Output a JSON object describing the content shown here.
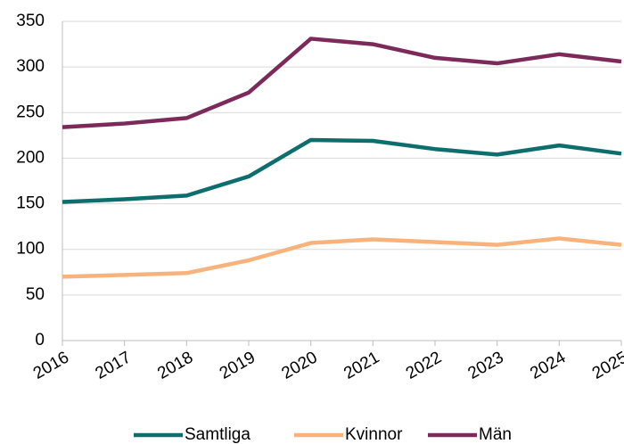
{
  "chart_data": {
    "type": "line",
    "categories": [
      "2016",
      "2017",
      "2018",
      "2019",
      "2020",
      "2021",
      "2022",
      "2023",
      "2024",
      "2025"
    ],
    "series": [
      {
        "name": "Samtliga",
        "color": "#0e6e6e",
        "values": [
          152,
          155,
          159,
          180,
          220,
          219,
          210,
          204,
          214,
          205
        ]
      },
      {
        "name": "Kvinnor",
        "color": "#f8b37c",
        "values": [
          70,
          72,
          74,
          88,
          107,
          111,
          108,
          105,
          112,
          105
        ]
      },
      {
        "name": "Män",
        "color": "#7b2a5a",
        "values": [
          234,
          238,
          244,
          272,
          331,
          325,
          310,
          304,
          314,
          306
        ]
      }
    ],
    "ylim": [
      0,
      350
    ],
    "yticks": [
      0,
      50,
      100,
      150,
      200,
      250,
      300,
      350
    ],
    "grid": true,
    "legend": "bottom"
  }
}
